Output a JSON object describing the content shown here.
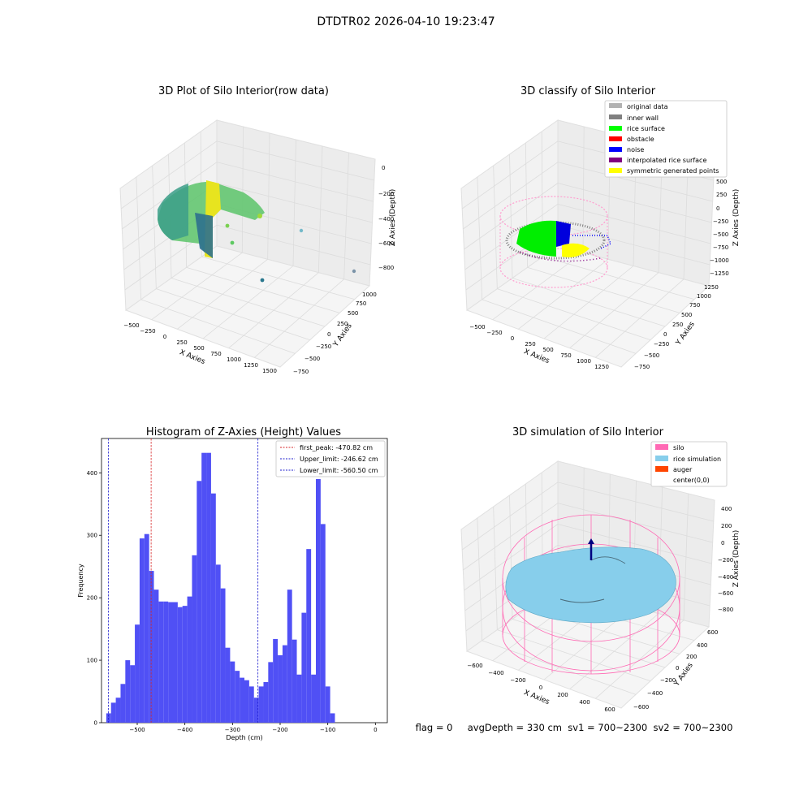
{
  "figure": {
    "suptitle": "DTDTR02 2026-04-10 19:23:47",
    "status_line": "flag = 0     avgDepth = 330 cm  sv1 = 700~2300  sv2 = 700~2300"
  },
  "colors": {
    "histogram_bars": "#5050f5",
    "first_peak_line": "#d62728",
    "limit_line": "#1f1fcf",
    "silo_wireframe": "#ff69b4",
    "rice_simulation": "#87cefa",
    "original_data": "#b2b2b2",
    "inner_wall": "#808080",
    "rice_surface": "#00ff00",
    "obstacle": "#ff0000",
    "noise": "#0000ff",
    "interpolated": "#800080",
    "symmetric": "#ffff00",
    "auger": "#ff4500"
  },
  "chart_data": [
    {
      "type": "scatter3d",
      "title": "3D Plot of Silo Interior(row data)",
      "xlabel": "X Axies",
      "ylabel": "Y Axies",
      "zlabel": "Z Axies (Depth)",
      "x_ticks": [
        "−500",
        "−250",
        "0",
        "250",
        "500",
        "750",
        "1000",
        "1250",
        "1500"
      ],
      "y_ticks": [
        "−750",
        "−500",
        "−250",
        "0",
        "250",
        "500",
        "750",
        "1000"
      ],
      "z_ticks": [
        "0",
        "−200",
        "−400",
        "−600",
        "−800"
      ],
      "grid": true
    },
    {
      "type": "scatter3d",
      "title": "3D classify of Silo Interior",
      "xlabel": "X Axies",
      "ylabel": "Y Axies",
      "zlabel": "Z Axies (Depth)",
      "x_ticks": [
        "−500",
        "−250",
        "0",
        "250",
        "500",
        "750",
        "1000",
        "1250"
      ],
      "y_ticks": [
        "−750",
        "−500",
        "−250",
        "0",
        "250",
        "500",
        "750",
        "1000",
        "1250"
      ],
      "z_ticks": [
        "500",
        "250",
        "0",
        "−250",
        "−500",
        "−750",
        "−1000",
        "−1250"
      ],
      "legend": [
        {
          "label": "original data",
          "color": "#b2b2b2"
        },
        {
          "label": "inner wall",
          "color": "#808080"
        },
        {
          "label": "rice surface",
          "color": "#00ff00"
        },
        {
          "label": "obstacle",
          "color": "#ff0000"
        },
        {
          "label": "noise",
          "color": "#0000ff"
        },
        {
          "label": "interpolated rice surface",
          "color": "#800080"
        },
        {
          "label": "symmetric generated points",
          "color": "#ffff00"
        }
      ],
      "legend_position": "top-right",
      "grid": true
    },
    {
      "type": "bar",
      "title": "Histogram of Z-Axies (Height) Values",
      "xlabel": "Depth (cm)",
      "ylabel": "Frequency",
      "xlim": [
        -575,
        25
      ],
      "ylim": [
        0,
        455
      ],
      "x_ticks": [
        {
          "v": -500,
          "label": "−500"
        },
        {
          "v": -400,
          "label": "−400"
        },
        {
          "v": -300,
          "label": "−300"
        },
        {
          "v": -200,
          "label": "−200"
        },
        {
          "v": -100,
          "label": "−100"
        },
        {
          "v": 0,
          "label": "0"
        }
      ],
      "y_ticks": [
        0,
        100,
        200,
        300,
        400
      ],
      "bin_start": -565,
      "bin_width": 10,
      "values": [
        15,
        32,
        40,
        62,
        100,
        92,
        157,
        295,
        302,
        243,
        213,
        194,
        194,
        193,
        193,
        185,
        187,
        202,
        268,
        387,
        432,
        432,
        367,
        253,
        215,
        120,
        98,
        83,
        72,
        68,
        58,
        40,
        58,
        65,
        97,
        134,
        108,
        124,
        213,
        133,
        77,
        176,
        278,
        77,
        390,
        318,
        58,
        15
      ],
      "vlines": [
        {
          "x": -470.82,
          "label": "first_peak: -470.82 cm",
          "color": "#d62728"
        },
        {
          "x": -246.62,
          "label": "Upper_limit: -246.62 cm",
          "color": "#1f1fcf"
        },
        {
          "x": -560.5,
          "label": "Lower_limit: -560.50 cm",
          "color": "#1f1fcf"
        }
      ],
      "legend_position": "top-right"
    },
    {
      "type": "surface3d",
      "title": "3D simulation of Silo Interior",
      "xlabel": "X Axies",
      "ylabel": "Y Axies",
      "zlabel": "Z Axies (Depth)",
      "x_ticks": [
        "−600",
        "−400",
        "−200",
        "0",
        "200",
        "400",
        "600"
      ],
      "y_ticks": [
        "−600",
        "−400",
        "−200",
        "0",
        "200",
        "400",
        "600"
      ],
      "z_ticks": [
        "400",
        "200",
        "0",
        "−200",
        "−400",
        "−600",
        "−800"
      ],
      "legend": [
        {
          "label": "silo",
          "color": "#ff69b4"
        },
        {
          "label": "rice simulation",
          "color": "#87ceeb"
        },
        {
          "label": "auger",
          "color": "#ff4500"
        },
        {
          "label": "center(0,0)",
          "color": "#ffffff"
        }
      ],
      "legend_position": "top-right",
      "grid": true
    }
  ]
}
